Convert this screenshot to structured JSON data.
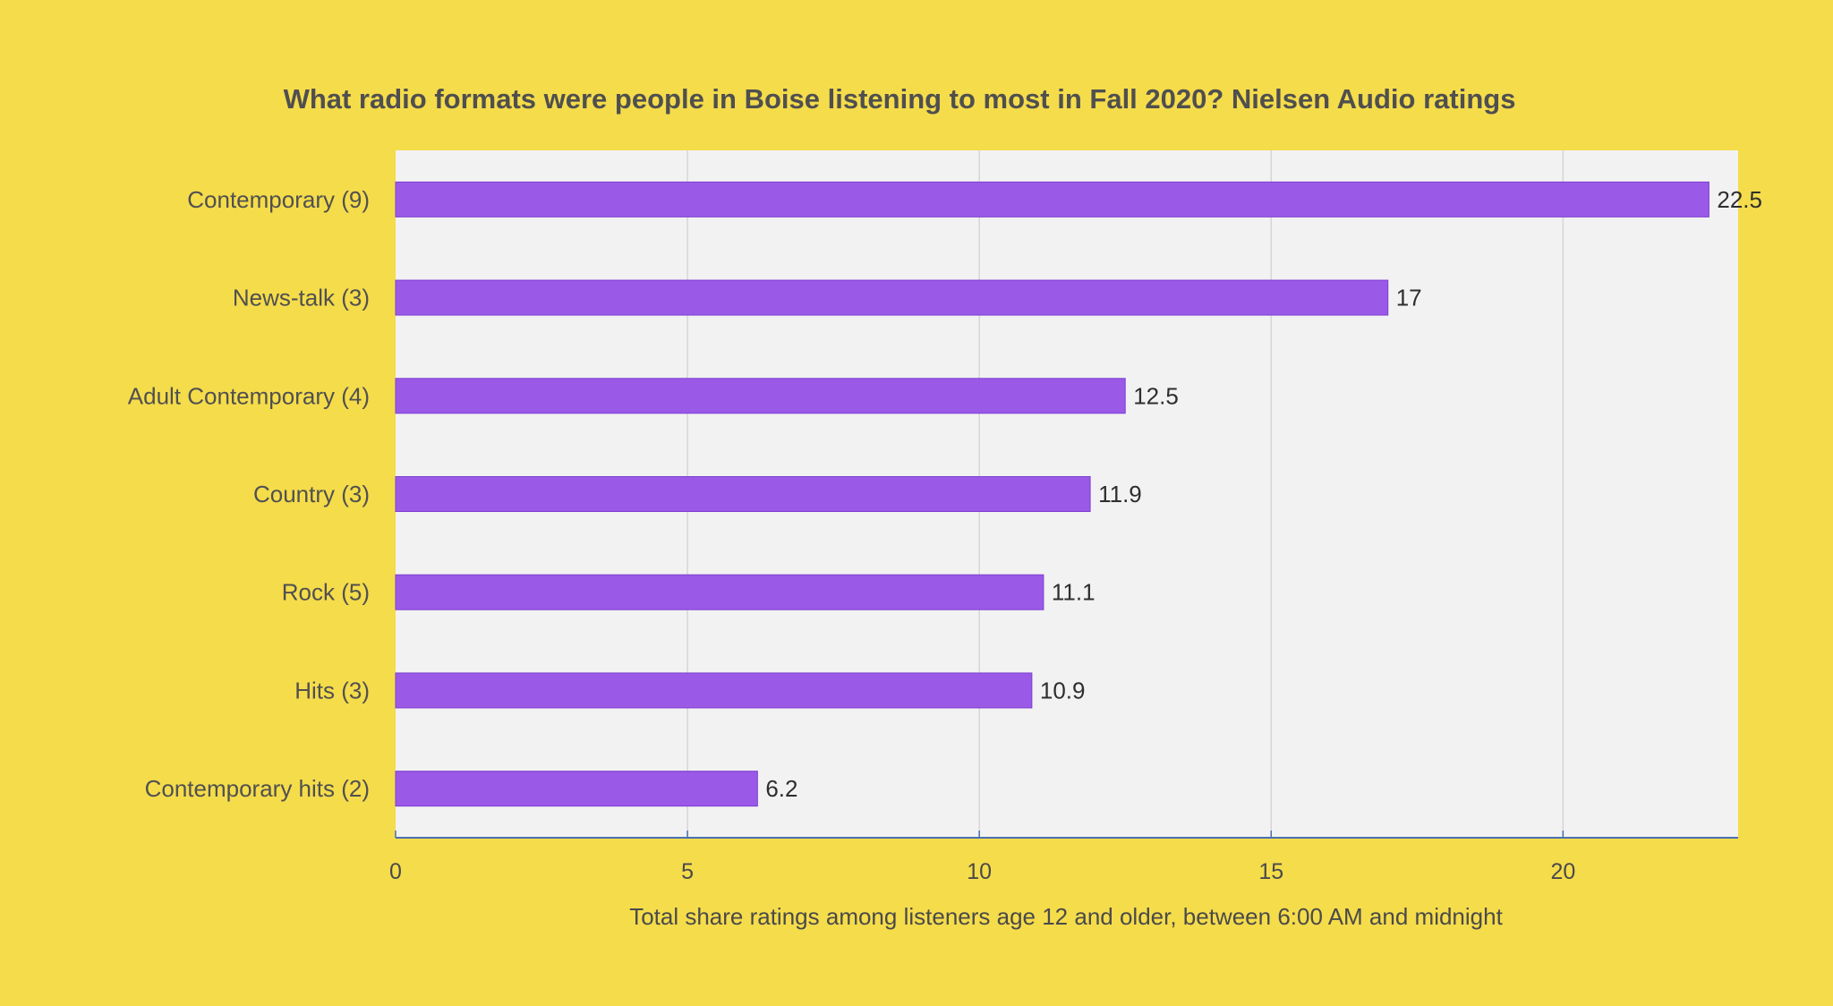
{
  "chart_data": {
    "type": "bar",
    "orientation": "horizontal",
    "title": "What radio formats were people in Boise listening to most in Fall 2020? Nielsen Audio ratings",
    "xlabel": "Total share ratings among listeners age 12 and older, between 6:00 AM and midnight",
    "ylabel": "",
    "categories": [
      "Contemporary (9)",
      "News-talk (3)",
      "Adult Contemporary (4)",
      "Country (3)",
      "Rock (5)",
      "Hits (3)",
      "Contemporary hits (2)"
    ],
    "values": [
      22.5,
      17,
      12.5,
      11.9,
      11.1,
      10.9,
      6.2
    ],
    "value_labels": [
      "22.5",
      "17",
      "12.5",
      "11.9",
      "11.1",
      "10.9",
      "6.2"
    ],
    "xlim": [
      0,
      23
    ],
    "xticks": [
      0,
      5,
      10,
      15,
      20
    ],
    "xtick_labels": [
      "0",
      "5",
      "10",
      "15",
      "20"
    ],
    "grid": "vertical",
    "legend": "none",
    "colors": {
      "background": "#F5DC4B",
      "plot_background": "#F2F2F2",
      "bar": "#9B59E8",
      "bar_edge": "#7D3FD0",
      "grid": "#D6D6D6",
      "axis": "#4A6FB0"
    }
  }
}
